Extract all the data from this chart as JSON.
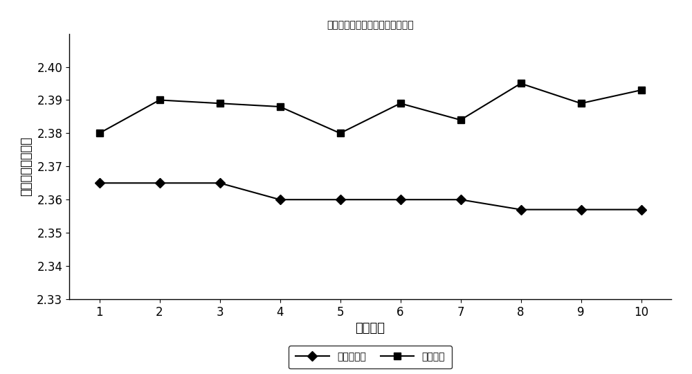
{
  "title": "实测芯样密度与室内马歇尔密度图",
  "xlabel": "试验次数",
  "ylabel": "马歇尔毛体积密度",
  "x": [
    1,
    2,
    3,
    4,
    5,
    6,
    7,
    8,
    9,
    10
  ],
  "marshall_density": [
    2.365,
    2.365,
    2.365,
    2.36,
    2.36,
    2.36,
    2.36,
    2.357,
    2.357,
    2.357
  ],
  "core_density": [
    2.38,
    2.39,
    2.389,
    2.388,
    2.38,
    2.389,
    2.384,
    2.395,
    2.389,
    2.393
  ],
  "ylim": [
    2.33,
    2.41
  ],
  "yticks": [
    2.33,
    2.34,
    2.35,
    2.36,
    2.37,
    2.38,
    2.39,
    2.4
  ],
  "line_color": "#000000",
  "marker_diamond": "D",
  "marker_square": "s",
  "legend_marshall": "马歇尔密度",
  "legend_core": "芯样密度",
  "bg_color": "#ffffff",
  "title_fontsize": 15,
  "label_fontsize": 13,
  "tick_fontsize": 12,
  "legend_fontsize": 13
}
